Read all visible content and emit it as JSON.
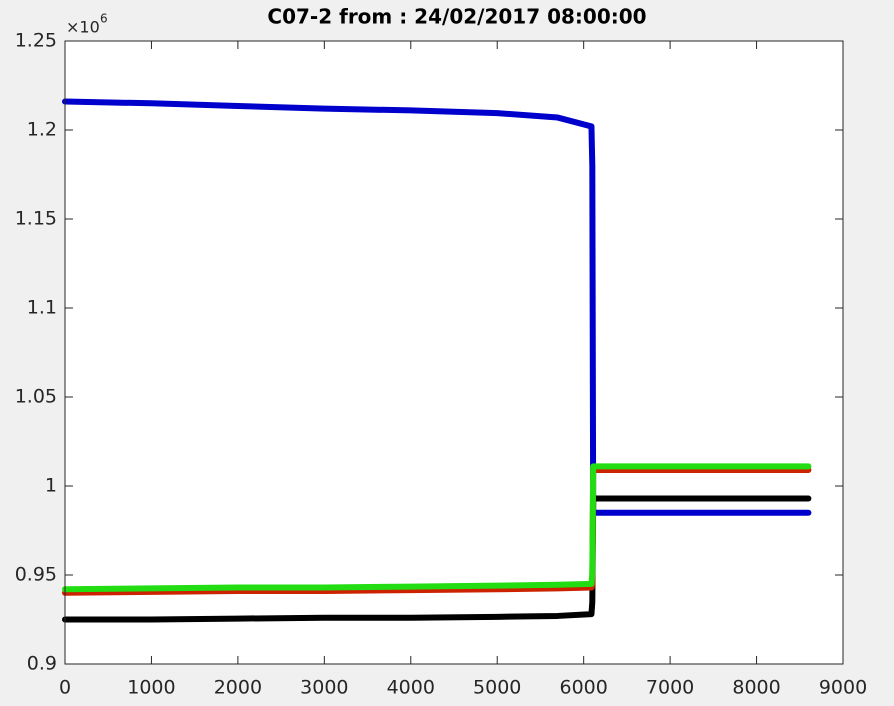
{
  "chart_data": {
    "type": "line",
    "title": "C07-2  from : 24/02/2017 08:00:00",
    "y_multiplier": {
      "base": "×10",
      "exponent": "6"
    },
    "x": [
      0,
      1000,
      2000,
      3000,
      4000,
      5000,
      5700,
      6090,
      6100,
      6110,
      7000,
      8000,
      8600
    ],
    "series": [
      {
        "color": "#0000cc",
        "values": [
          1.216,
          1.215,
          1.2135,
          1.212,
          1.211,
          1.2095,
          1.207,
          1.202,
          1.18,
          0.985,
          0.985,
          0.985,
          0.985
        ]
      },
      {
        "color": "#000000",
        "values": [
          0.925,
          0.925,
          0.9255,
          0.926,
          0.926,
          0.9265,
          0.927,
          0.928,
          0.935,
          0.993,
          0.993,
          0.993,
          0.993
        ]
      },
      {
        "color": "#cc2200",
        "values": [
          0.94,
          0.9405,
          0.941,
          0.941,
          0.9415,
          0.942,
          0.9425,
          0.943,
          0.944,
          1.009,
          1.009,
          1.009,
          1.009
        ]
      },
      {
        "color": "#22dd11",
        "values": [
          0.942,
          0.9425,
          0.943,
          0.943,
          0.9435,
          0.944,
          0.9445,
          0.945,
          0.951,
          1.011,
          1.011,
          1.011,
          1.011
        ]
      }
    ],
    "xlim": [
      0,
      9000
    ],
    "xticks": [
      0,
      1000,
      2000,
      3000,
      4000,
      5000,
      6000,
      7000,
      8000,
      9000
    ],
    "ylim": [
      0.9,
      1.25
    ],
    "yticks": [
      0.9,
      0.95,
      1,
      1.05,
      1.1,
      1.15,
      1.2,
      1.25
    ],
    "grid": false
  }
}
